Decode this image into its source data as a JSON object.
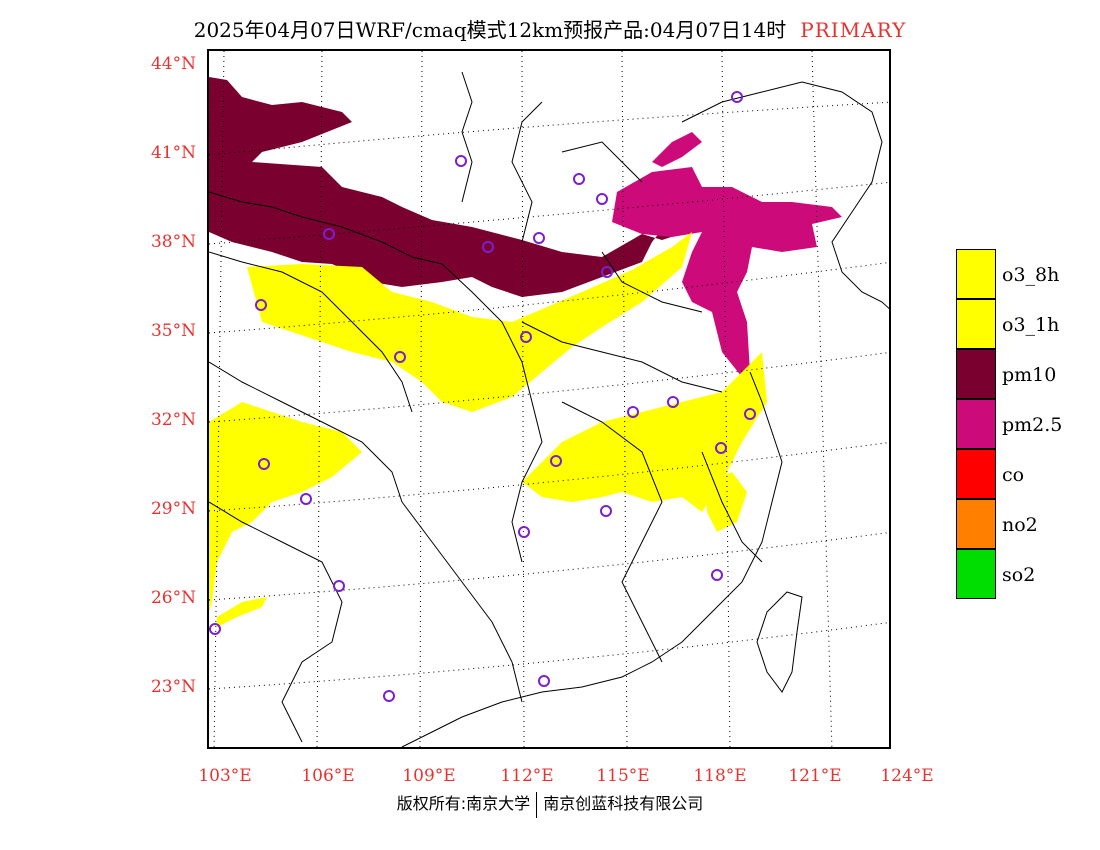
{
  "title": {
    "text": "2025年04月07日WRF/cmaq模式12km预报产品:04月07日14时",
    "tag": "PRIMARY"
  },
  "axes": {
    "lat_labels": [
      "44°N",
      "41°N",
      "38°N",
      "35°N",
      "32°N",
      "29°N",
      "26°N",
      "23°N"
    ],
    "lon_labels": [
      "103°E",
      "106°E",
      "109°E",
      "112°E",
      "115°E",
      "118°E",
      "121°E",
      "124°E"
    ]
  },
  "legend": [
    {
      "label": "o3_8h",
      "color": "#ffff00"
    },
    {
      "label": "o3_1h",
      "color": "#ffff00"
    },
    {
      "label": "pm10",
      "color": "#7a0030"
    },
    {
      "label": "pm2.5",
      "color": "#cc0a7a"
    },
    {
      "label": "co",
      "color": "#ff0000"
    },
    {
      "label": "no2",
      "color": "#ff7f00"
    },
    {
      "label": "so2",
      "color": "#00dd00"
    }
  ],
  "copyright": {
    "left": "版权所有:南京大学",
    "right": "南京创蓝科技有限公司"
  }
}
